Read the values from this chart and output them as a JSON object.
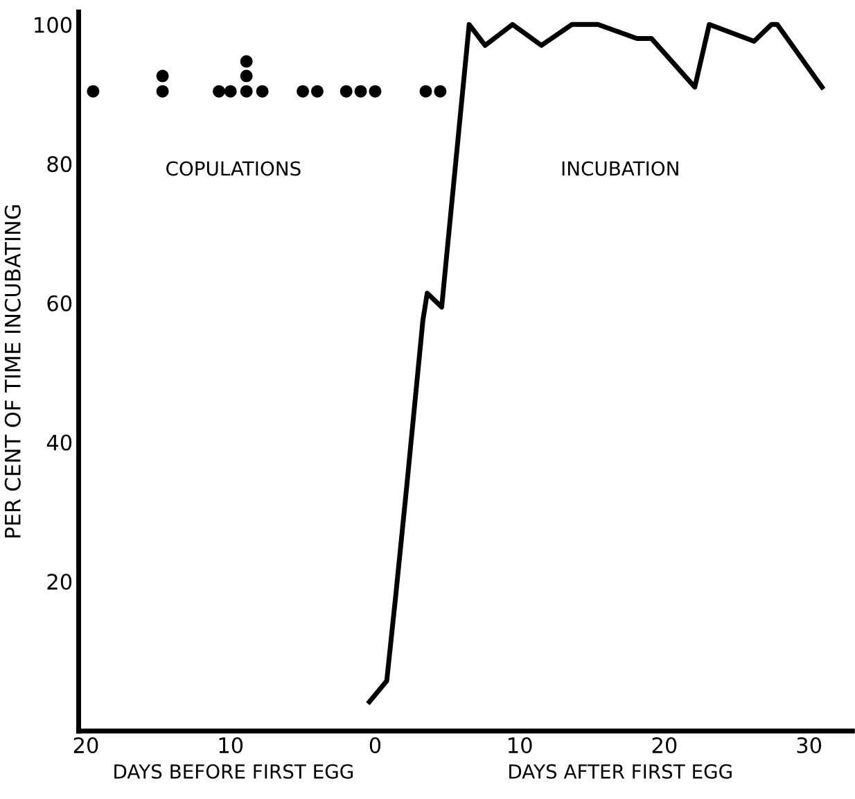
{
  "chart_data": {
    "type": "line",
    "ylabel": "PER CENT OF TIME INCUBATING",
    "xlim": [
      -20.5,
      33
    ],
    "ylim": [
      -1.5,
      101.8
    ],
    "xticks": [
      {
        "value": -20,
        "label": "20"
      },
      {
        "value": -10,
        "label": "10"
      },
      0,
      10,
      20,
      30
    ],
    "yticks": [
      20,
      40,
      60,
      80,
      {
        "value": 100,
        "label": "100"
      }
    ],
    "grid": false,
    "legend": false,
    "series": [
      {
        "type": "scatter",
        "color": "#000000",
        "marker": "circle",
        "x": [
          -19.5,
          -14.7,
          -14.7,
          -10.8,
          -10,
          -8.9,
          -8.9,
          -8.9,
          -7.8,
          -5,
          -4,
          -2,
          -1,
          0,
          3.5,
          4.5
        ],
        "values": [
          90.4,
          90.4,
          92.6,
          90.4,
          90.4,
          90.4,
          92.6,
          94.7,
          90.4,
          90.4,
          90.4,
          90.4,
          90.4,
          90.4,
          90.4,
          90.4
        ]
      },
      {
        "color": "#000000",
        "line_style": "solid",
        "x": [
          -0.4,
          0.8,
          1.4,
          2.2,
          3.3,
          3.6,
          4.6,
          5,
          6.5,
          7.6,
          9.5,
          11.5,
          13.6,
          15.4,
          18.1,
          19.1,
          22.1,
          23.1,
          26.2,
          27.4,
          27.8,
          30.9
        ],
        "values": [
          2.7,
          5.7,
          17.5,
          34,
          57.5,
          61.4,
          59.4,
          68,
          100,
          97,
          100,
          97,
          100,
          100,
          98,
          98,
          91,
          100,
          97.6,
          100,
          100,
          91
        ]
      }
    ],
    "annotations": [
      "COPULATIONS",
      "INCUBATION",
      "DAYS BEFORE FIRST EGG",
      "DAYS AFTER FIRST EGG"
    ]
  }
}
